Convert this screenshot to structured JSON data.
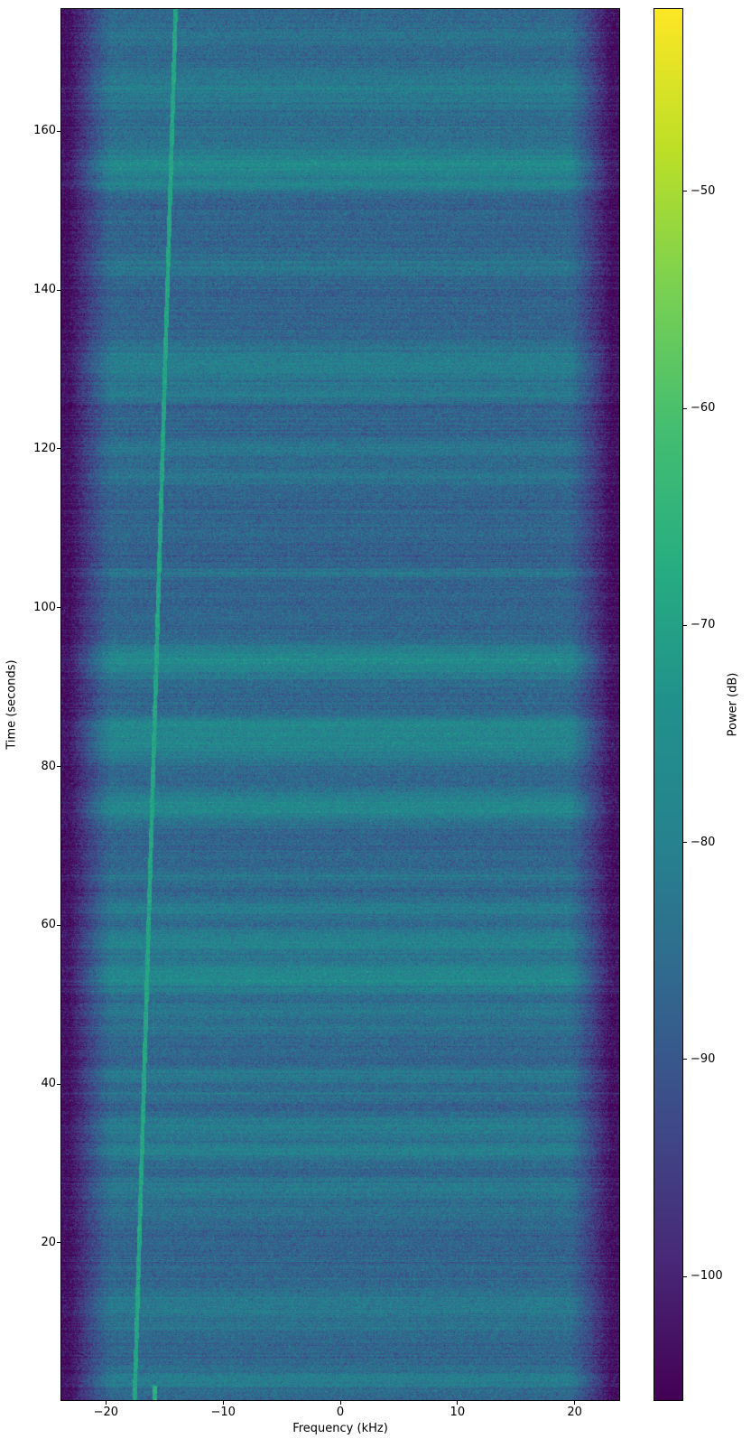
{
  "chart_data": {
    "type": "heatmap",
    "subtype": "spectrogram-waterfall",
    "title": "",
    "xlabel": "Frequency (kHz)",
    "ylabel": "Time (seconds)",
    "colorbar_label": "Power (dB)",
    "xlim": [
      -23.8,
      23.8
    ],
    "ylim": [
      0.2,
      175.4
    ],
    "xticks": [
      -20,
      -10,
      0,
      10,
      20
    ],
    "xtick_labels": [
      "−20",
      "−10",
      "0",
      "10",
      "20"
    ],
    "yticks": [
      20,
      40,
      60,
      80,
      100,
      120,
      140,
      160
    ],
    "ytick_labels": [
      "20",
      "40",
      "60",
      "80",
      "100",
      "120",
      "140",
      "160"
    ],
    "colorbar_ticks": [
      -50,
      -60,
      -70,
      -80,
      -90,
      -100
    ],
    "colorbar_tick_labels": [
      "−50",
      "−60",
      "−70",
      "−80",
      "−90",
      "−100"
    ],
    "clim": [
      -105.7,
      -41.6
    ],
    "colormap": "viridis",
    "colormap_stops": [
      "#440154",
      "#482878",
      "#3e4a89",
      "#31688e",
      "#26828e",
      "#21918c",
      "#27ad81",
      "#44be70",
      "#7ad151",
      "#bddf26",
      "#fde725"
    ],
    "grid": false,
    "legend": "none (colorbar on right)",
    "noise_floor_db": -87,
    "noise_sigma_db": 3.4,
    "row_noise_sigma_db": 1.3,
    "edge_rolloff": {
      "passband_khz": 19.5,
      "stop_khz": 23.1,
      "atten_db": 17
    },
    "bands": [
      {
        "t": 172.0,
        "boost_db": 3.5,
        "sigma_s": 1.2
      },
      {
        "t": 165.5,
        "boost_db": 6.0,
        "sigma_s": 2.0
      },
      {
        "t": 160.0,
        "boost_db": 3.0,
        "sigma_s": 1.0
      },
      {
        "t": 155.8,
        "boost_db": 10.0,
        "sigma_s": 1.6
      },
      {
        "t": 153.0,
        "boost_db": 5.0,
        "sigma_s": 0.5
      },
      {
        "t": 143.0,
        "boost_db": 4.5,
        "sigma_s": 1.0
      },
      {
        "t": 130.5,
        "boost_db": 7.0,
        "sigma_s": 1.8
      },
      {
        "t": 126.8,
        "boost_db": 5.0,
        "sigma_s": 0.6
      },
      {
        "t": 120.0,
        "boost_db": 5.0,
        "sigma_s": 0.7
      },
      {
        "t": 116.5,
        "boost_db": 4.0,
        "sigma_s": 0.9
      },
      {
        "t": 104.3,
        "boost_db": 3.5,
        "sigma_s": 0.5
      },
      {
        "t": 93.3,
        "boost_db": 10.0,
        "sigma_s": 1.5
      },
      {
        "t": 85.3,
        "boost_db": 7.0,
        "sigma_s": 0.8
      },
      {
        "t": 82.8,
        "boost_db": 9.0,
        "sigma_s": 1.5
      },
      {
        "t": 75.0,
        "boost_db": 10.0,
        "sigma_s": 1.3
      },
      {
        "t": 66.0,
        "boost_db": 3.5,
        "sigma_s": 0.7
      },
      {
        "t": 62.0,
        "boost_db": 6.0,
        "sigma_s": 0.9
      },
      {
        "t": 58.0,
        "boost_db": 8.0,
        "sigma_s": 1.1
      },
      {
        "t": 53.5,
        "boost_db": 10.0,
        "sigma_s": 1.4
      },
      {
        "t": 49.2,
        "boost_db": 5.0,
        "sigma_s": 0.8
      },
      {
        "t": 47.0,
        "boost_db": 3.5,
        "sigma_s": 0.6
      },
      {
        "t": 41.2,
        "boost_db": 5.0,
        "sigma_s": 0.8
      },
      {
        "t": 38.5,
        "boost_db": 3.0,
        "sigma_s": 0.5
      },
      {
        "t": 35.2,
        "boost_db": 6.0,
        "sigma_s": 0.6
      },
      {
        "t": 33.8,
        "boost_db": 5.0,
        "sigma_s": 0.5
      },
      {
        "t": 31.5,
        "boost_db": 8.0,
        "sigma_s": 0.8
      },
      {
        "t": 26.8,
        "boost_db": 6.0,
        "sigma_s": 0.9
      },
      {
        "t": 24.0,
        "boost_db": 3.0,
        "sigma_s": 0.6
      },
      {
        "t": 12.3,
        "boost_db": 5.0,
        "sigma_s": 1.3
      },
      {
        "t": 9.5,
        "boost_db": 3.5,
        "sigma_s": 0.7
      },
      {
        "t": 2.8,
        "boost_db": 6.0,
        "sigma_s": 1.0
      }
    ],
    "drift_line": {
      "f_start_khz": -17.55,
      "f_end_khz": -14.05,
      "t_start": 0.2,
      "t_end": 175.4,
      "power_db": -69,
      "width_khz": 0.18
    },
    "burst_line": {
      "f_khz": -15.8,
      "t_start": 0.2,
      "t_end": 2.0,
      "power_db": -66,
      "width_khz": 0.2
    }
  }
}
